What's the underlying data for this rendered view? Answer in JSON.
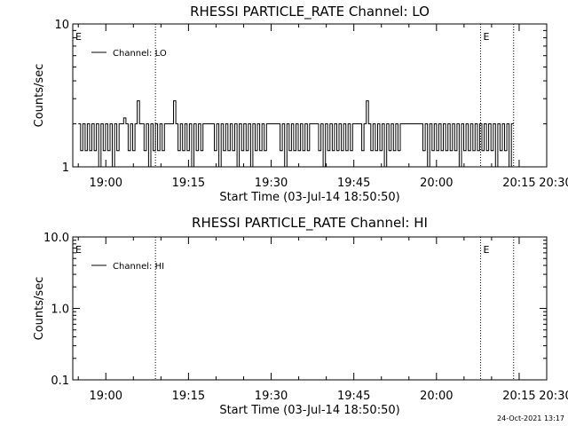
{
  "footer": {
    "timestamp": "24-Oct-2021 13:17"
  },
  "chart_data": [
    {
      "type": "line",
      "title": "RHESSI PARTICLE_RATE Channel: LO",
      "xlabel": "Start Time (03-Jul-14 18:50:50)",
      "ylabel": "Counts/sec",
      "yscale": "log",
      "ylim": [
        1,
        10
      ],
      "ytick_labels": [
        "1",
        "10"
      ],
      "xtick_labels": [
        "19:00",
        "19:15",
        "19:30",
        "19:45",
        "20:00",
        "20:15",
        "20:30"
      ],
      "xlim_minutes": [
        -6,
        80
      ],
      "legend": {
        "label": "Channel: LO",
        "position": "top-left"
      },
      "event_markers": [
        {
          "label": "E",
          "minute": -6
        },
        {
          "label": "",
          "minute": 9
        },
        {
          "label": "E",
          "minute": 68
        },
        {
          "label": "",
          "minute": 74
        }
      ],
      "series": [
        {
          "name": "Channel: LO",
          "levels": [
            2,
            1.3,
            2,
            1.3,
            2,
            1.3,
            2,
            1.3,
            2,
            1,
            2,
            1.3,
            2,
            1.3,
            2,
            1,
            2,
            1.3,
            2,
            2,
            2.2,
            2,
            1.3,
            2,
            1.3,
            2,
            2.9,
            2,
            2,
            1.3,
            2,
            1,
            2,
            1.3,
            2,
            1.3,
            2,
            1.3,
            2,
            2,
            2,
            2,
            2.9,
            2,
            1.3,
            2,
            1.3,
            2,
            1.3,
            2,
            1,
            2,
            1.3,
            2,
            1.3,
            2,
            2,
            2,
            2,
            2,
            1.3,
            2,
            1,
            2,
            1.3,
            2,
            1.3,
            2,
            1.3,
            2,
            1,
            2,
            1.3,
            2,
            1.3,
            2,
            1,
            2,
            1.3,
            2,
            1.3,
            2,
            1.3,
            2,
            2,
            2,
            2,
            2,
            2,
            1.3,
            2,
            1,
            2,
            1.3,
            2,
            1.3,
            2,
            1.3,
            2,
            1.3,
            2,
            1.3,
            2,
            2,
            2,
            2,
            1.3,
            2,
            1,
            2,
            1.3,
            2,
            1.3,
            2,
            1.3,
            2,
            1.3,
            2,
            1.3,
            2,
            1.3,
            2,
            2,
            2,
            2,
            1.3,
            2,
            2.9,
            2,
            1.3,
            2,
            1.3,
            2,
            1.3,
            2,
            1,
            2,
            1.3,
            2,
            1.3,
            2,
            1.3,
            2,
            2,
            2,
            2,
            2,
            2,
            2,
            2,
            2,
            2,
            1.3,
            2,
            1,
            2,
            1.3,
            2,
            1.3,
            2,
            1.3,
            2,
            1.3,
            2,
            1.3,
            2,
            1.3,
            2,
            1,
            2,
            1.3,
            2,
            1.3,
            2,
            1.3,
            2,
            1.3,
            2,
            1.3,
            2,
            1.3,
            2,
            1.3,
            2,
            1,
            2,
            1.3,
            2,
            1.3,
            2,
            1,
            2
          ]
        }
      ]
    },
    {
      "type": "line",
      "title": "RHESSI PARTICLE_RATE Channel: HI",
      "xlabel": "Start Time (03-Jul-14 18:50:50)",
      "ylabel": "Counts/sec",
      "yscale": "log",
      "ylim": [
        0.1,
        10
      ],
      "ytick_labels": [
        "0.1",
        "1.0",
        "10.0"
      ],
      "xtick_labels": [
        "19:00",
        "19:15",
        "19:30",
        "19:45",
        "20:00",
        "20:15",
        "20:30"
      ],
      "xlim_minutes": [
        -6,
        80
      ],
      "legend": {
        "label": "Channel: HI",
        "position": "top-left"
      },
      "event_markers": [
        {
          "label": "E",
          "minute": -6
        },
        {
          "label": "",
          "minute": 9
        },
        {
          "label": "E",
          "minute": 68
        },
        {
          "label": "",
          "minute": 74
        }
      ],
      "series": [
        {
          "name": "Channel: HI",
          "levels": []
        }
      ]
    }
  ]
}
